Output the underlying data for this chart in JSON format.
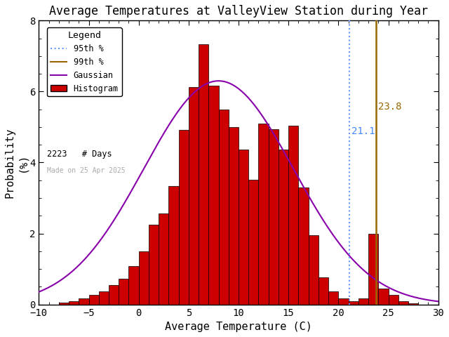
{
  "title": "Average Temperatures at ValleyView Station during Year",
  "xlabel": "Average Temperature (C)",
  "ylabel": "Probability\n(%)",
  "xlim": [
    -10,
    30
  ],
  "ylim": [
    0,
    8
  ],
  "bin_edges": [
    -8,
    -7,
    -6,
    -5,
    -4,
    -3,
    -2,
    -1,
    0,
    1,
    2,
    3,
    4,
    5,
    6,
    7,
    8,
    9,
    10,
    11,
    12,
    13,
    14,
    15,
    16,
    17,
    18,
    19,
    20,
    21,
    22,
    23,
    24,
    25,
    26,
    27,
    28
  ],
  "bin_probs": [
    0.05,
    0.09,
    0.18,
    0.27,
    0.36,
    0.54,
    0.72,
    1.08,
    1.49,
    2.25,
    2.56,
    3.33,
    4.91,
    6.13,
    7.33,
    6.17,
    5.5,
    5.0,
    4.36,
    3.51,
    5.09,
    4.94,
    4.36,
    5.04,
    3.29,
    1.96,
    0.76,
    0.36,
    0.18,
    0.09,
    0.18,
    2.0,
    0.45,
    0.27,
    0.09,
    0.04
  ],
  "gauss_mean": 8.0,
  "gauss_std": 7.5,
  "gauss_amplitude": 6.3,
  "pct95": 21.1,
  "pct99": 23.8,
  "n_days": 2223,
  "date_label": "Made on 25 Apr 2025",
  "bar_color": "#cc0000",
  "bar_edge_color": "#000000",
  "gauss_color": "#8800aa",
  "pct95_color": "#6699ff",
  "pct99_color": "#996600",
  "pct95_label_color": "#4488ff",
  "pct99_label_color": "#996600",
  "background_color": "#ffffff",
  "title_fontsize": 12,
  "axis_fontsize": 11,
  "tick_fontsize": 10
}
